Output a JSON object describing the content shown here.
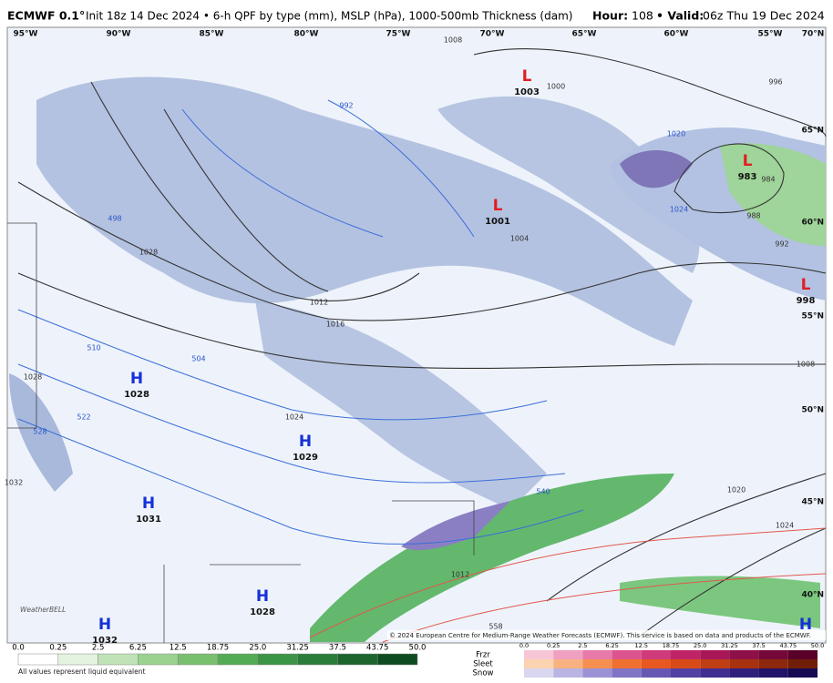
{
  "header": {
    "model": "ECMWF 0.1°",
    "details": "Init 18z 14 Dec 2024 • 6-h QPF by type (mm), MSLP (hPa), 1000-500mb Thickness (dam)",
    "hour_label": "Hour:",
    "hour": "108",
    "valid_label": "• Valid:",
    "valid": "06z Thu 19 Dec 2024"
  },
  "longitudes": [
    "95°W",
    "90°W",
    "85°W",
    "80°W",
    "75°W",
    "70°W",
    "65°W",
    "60°W",
    "55°W",
    "70°N"
  ],
  "latitudes": [
    "65°N",
    "60°N",
    "55°N",
    "50°N",
    "45°N",
    "40°N"
  ],
  "centers": [
    {
      "letter": "H",
      "value": "1028"
    },
    {
      "letter": "H",
      "value": "1029"
    },
    {
      "letter": "H",
      "value": "1031"
    },
    {
      "letter": "H",
      "value": "1028"
    },
    {
      "letter": "H",
      "value": "1032"
    },
    {
      "letter": "L",
      "value": "1003"
    },
    {
      "letter": "L",
      "value": "1001"
    },
    {
      "letter": "L",
      "value": "983"
    },
    {
      "letter": "L",
      "value": "998"
    },
    {
      "letter": "H",
      "value": ""
    }
  ],
  "contour_labels": [
    "1008",
    "1000",
    "996",
    "992",
    "984",
    "988",
    "992",
    "1004",
    "1012",
    "1016",
    "1020",
    "1024",
    "1028",
    "1024",
    "1008",
    "1020",
    "1024",
    "510",
    "504",
    "498",
    "522",
    "528",
    "1012",
    "540",
    "558",
    "1028",
    "1032"
  ],
  "legend": {
    "rain_values": [
      "0.0",
      "0.25",
      "2.5",
      "6.25",
      "12.5",
      "18.75",
      "25.0",
      "31.25",
      "37.5",
      "43.75",
      "50.0"
    ],
    "note": "All values represent liquid equivalent",
    "types": [
      "Frzr",
      "Sleet",
      "Snow"
    ],
    "mixed_values": [
      "0.0",
      "0.25",
      "2.5",
      "6.25",
      "12.5",
      "18.75",
      "25.0",
      "31.25",
      "37.5",
      "43.75",
      "50.0"
    ]
  },
  "credit": "© 2024 European Centre for Medium-Range Weather Forecasts (ECMWF). This service is based on data and products of the ECMWF.",
  "logo": "WeatherBELL"
}
